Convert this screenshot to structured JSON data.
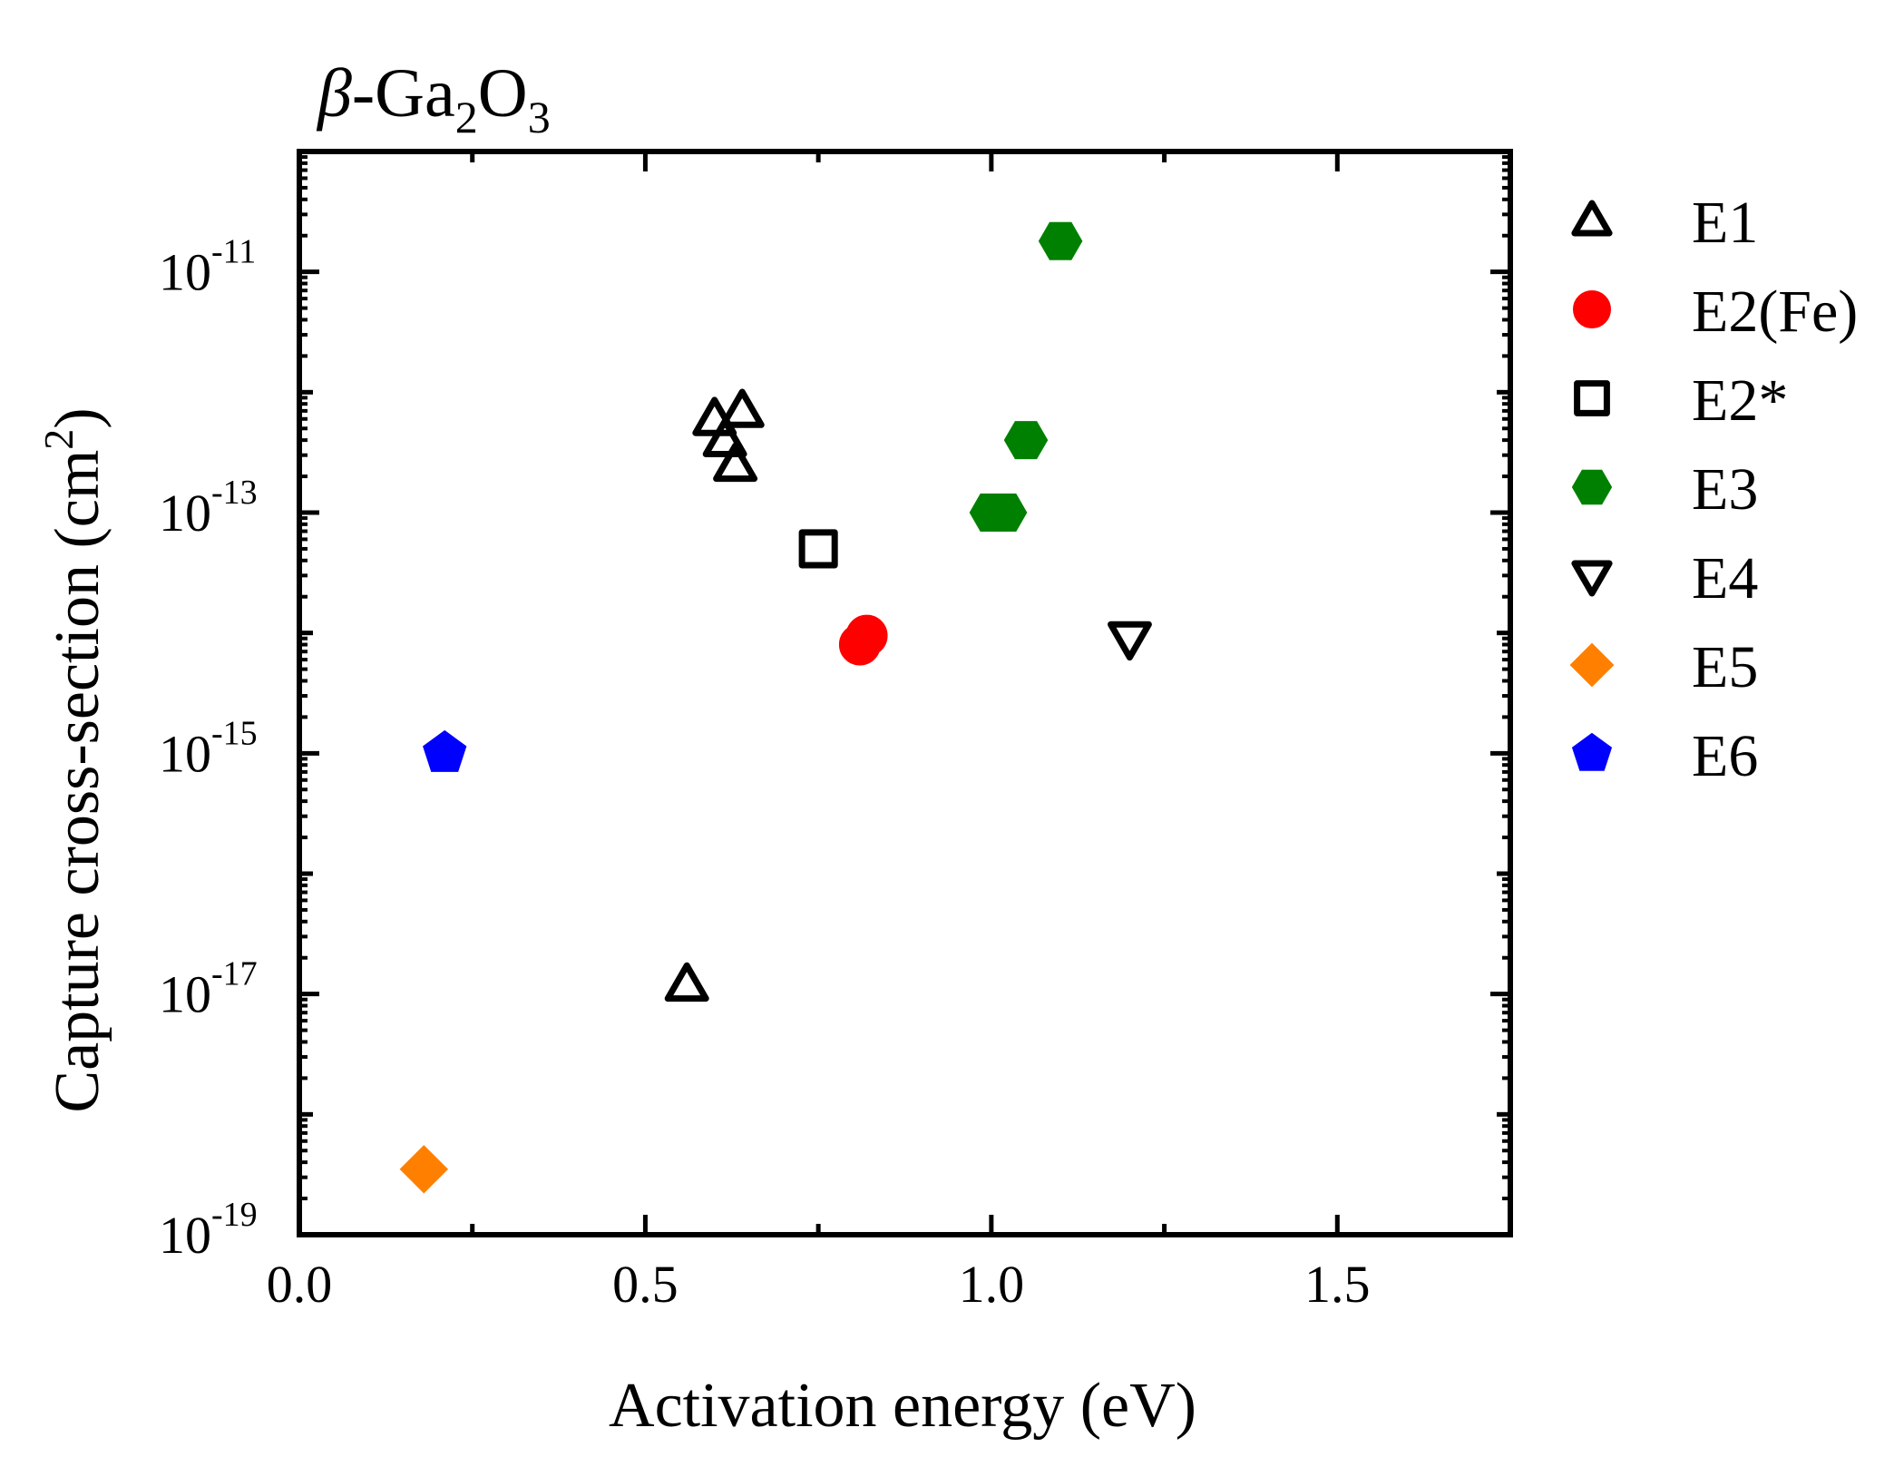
{
  "chart_data": {
    "type": "scatter",
    "title": "β-Ga2O3",
    "title_parts": {
      "symbol": "β",
      "dash": "-Ga",
      "sub1": "2",
      "mid": "O",
      "sub2": "3"
    },
    "xlabel": "Activation energy (eV)",
    "ylabel_main": "Capture cross-section (cm",
    "ylabel_sup": "2",
    "ylabel_close": ")",
    "xlim": [
      0.0,
      1.75
    ],
    "ylim": [
      1e-19,
      1e-10
    ],
    "yscale": "log",
    "x_ticks": [
      {
        "value": 0.0,
        "label": "0.0"
      },
      {
        "value": 0.5,
        "label": "0.5"
      },
      {
        "value": 1.0,
        "label": "1.0"
      },
      {
        "value": 1.5,
        "label": "1.5"
      }
    ],
    "y_ticks": [
      {
        "exp": -19,
        "base": "10",
        "sup": "-19"
      },
      {
        "exp": -17,
        "base": "10",
        "sup": "-17"
      },
      {
        "exp": -15,
        "base": "10",
        "sup": "-15"
      },
      {
        "exp": -13,
        "base": "10",
        "sup": "-13"
      },
      {
        "exp": -11,
        "base": "10",
        "sup": "-11"
      }
    ],
    "grid": false,
    "legend_position": "right",
    "series": [
      {
        "name": "E1",
        "marker": "triangle-up",
        "filled": false,
        "color": "#000000",
        "points": [
          [
            0.56,
            1.2e-17
          ],
          [
            0.6,
            6e-13
          ],
          [
            0.615,
            4e-13
          ],
          [
            0.63,
            2.5e-13
          ],
          [
            0.64,
            7e-13
          ]
        ]
      },
      {
        "name": "E2(Fe)",
        "marker": "circle",
        "filled": true,
        "color": "#ff0000",
        "points": [
          [
            0.81,
            8e-15
          ],
          [
            0.82,
            9.5e-15
          ]
        ]
      },
      {
        "name": "E2*",
        "marker": "square",
        "filled": false,
        "color": "#000000",
        "points": [
          [
            0.75,
            5e-14
          ]
        ]
      },
      {
        "name": "E3",
        "marker": "hexagon",
        "filled": true,
        "color": "#008000",
        "points": [
          [
            1.0,
            1e-13
          ],
          [
            1.02,
            1e-13
          ],
          [
            1.05,
            4e-13
          ],
          [
            1.1,
            1.8e-11
          ]
        ]
      },
      {
        "name": "E4",
        "marker": "triangle-down",
        "filled": false,
        "color": "#000000",
        "points": [
          [
            1.2,
            9e-15
          ]
        ]
      },
      {
        "name": "E5",
        "marker": "diamond",
        "filled": true,
        "color": "#ff8000",
        "points": [
          [
            0.18,
            3.5e-19
          ]
        ]
      },
      {
        "name": "E6",
        "marker": "pentagon",
        "filled": true,
        "color": "#0000ff",
        "points": [
          [
            0.21,
            1e-15
          ]
        ]
      }
    ]
  }
}
